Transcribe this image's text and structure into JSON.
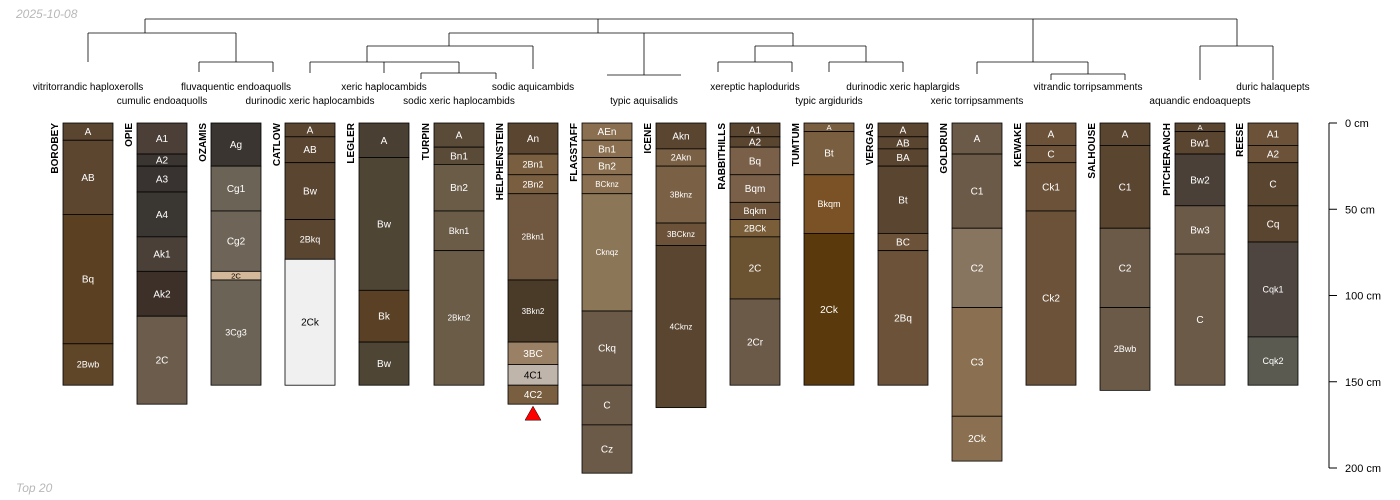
{
  "header": {
    "date": "2025-10-08"
  },
  "footer": {
    "caption": "Top 20"
  },
  "colors": {
    "line": "#000000",
    "marker": "#ff0000",
    "corner_text": "#b8b8b8"
  },
  "depth_axis": {
    "unit": "cm",
    "max_depth": 200,
    "ticks": [
      {
        "value": 0,
        "label": "0 cm"
      },
      {
        "value": 50,
        "label": "50 cm"
      },
      {
        "value": 100,
        "label": "100 cm"
      },
      {
        "value": 150,
        "label": "150 cm"
      },
      {
        "value": 200,
        "label": "200 cm"
      }
    ]
  },
  "taxa": [
    {
      "key": "vitritorrandic-haploxerolls",
      "label": "vitritorrandic haploxerolls"
    },
    {
      "key": "cumulic-endoaquolls",
      "label": "cumulic endoaquolls"
    },
    {
      "key": "fluvaquentic-endoaquolls",
      "label": "fluvaquentic endoaquolls"
    },
    {
      "key": "durinodic-xeric-haplocambids",
      "label": "durinodic xeric haplocambids"
    },
    {
      "key": "xeric-haplocambids",
      "label": "xeric haplocambids"
    },
    {
      "key": "sodic-xeric-haplocambids",
      "label": "sodic xeric haplocambids"
    },
    {
      "key": "sodic-aquicambids",
      "label": "sodic aquicambids"
    },
    {
      "key": "typic-aquisalids",
      "label": "typic aquisalids"
    },
    {
      "key": "xereptic-haplodurids",
      "label": "xereptic haplodurids"
    },
    {
      "key": "typic-argidurids",
      "label": "typic argidurids"
    },
    {
      "key": "durinodic-xeric-haplargids",
      "label": "durinodic xeric haplargids"
    },
    {
      "key": "xeric-torripsamments",
      "label": "xeric torripsamments"
    },
    {
      "key": "vitrandic-torripsamments",
      "label": "vitrandic torripsamments"
    },
    {
      "key": "aquandic-endoaquepts",
      "label": "aquandic endoaquepts"
    },
    {
      "key": "duric-halaquepts",
      "label": "duric halaquepts"
    }
  ],
  "profiles": [
    {
      "name": "BOROBEY",
      "horizons": [
        {
          "name": "A",
          "top": 0,
          "bottom": 10,
          "color": "#5a4530"
        },
        {
          "name": "AB",
          "top": 10,
          "bottom": 53,
          "color": "#5c4630"
        },
        {
          "name": "Bq",
          "top": 53,
          "bottom": 128,
          "color": "#5b4022"
        },
        {
          "name": "2Bwb",
          "top": 128,
          "bottom": 152,
          "color": "#5f4629"
        }
      ]
    },
    {
      "name": "OPIE",
      "horizons": [
        {
          "name": "A1",
          "top": 0,
          "bottom": 18,
          "color": "#4b3f38"
        },
        {
          "name": "A2",
          "top": 18,
          "bottom": 25,
          "color": "#3a3530"
        },
        {
          "name": "A3",
          "top": 25,
          "bottom": 40,
          "color": "#383330"
        },
        {
          "name": "A4",
          "top": 40,
          "bottom": 66,
          "color": "#3a3733"
        },
        {
          "name": "Ak1",
          "top": 66,
          "bottom": 86,
          "color": "#4a4038"
        },
        {
          "name": "Ak2",
          "top": 86,
          "bottom": 112,
          "color": "#3c3028"
        },
        {
          "name": "2C",
          "top": 112,
          "bottom": 163,
          "color": "#6b5c4c"
        }
      ]
    },
    {
      "name": "OZAMIS",
      "horizons": [
        {
          "name": "Ag",
          "top": 0,
          "bottom": 25,
          "color": "#3a3530"
        },
        {
          "name": "Cg1",
          "top": 25,
          "bottom": 51,
          "color": "#6b6356"
        },
        {
          "name": "Cg2",
          "top": 51,
          "bottom": 86,
          "color": "#6e6558"
        },
        {
          "name": "2C",
          "top": 86,
          "bottom": 91,
          "color": "#d4b89a"
        },
        {
          "name": "3Cg3",
          "top": 91,
          "bottom": 152,
          "color": "#6b6356"
        }
      ]
    },
    {
      "name": "CATLOW",
      "horizons": [
        {
          "name": "A",
          "top": 0,
          "bottom": 8,
          "color": "#5a4530"
        },
        {
          "name": "AB",
          "top": 8,
          "bottom": 23,
          "color": "#5a4530"
        },
        {
          "name": "Bw",
          "top": 23,
          "bottom": 56,
          "color": "#5a4530"
        },
        {
          "name": "2Bkq",
          "top": 56,
          "bottom": 79,
          "color": "#5a4530"
        },
        {
          "name": "2Ck",
          "top": 79,
          "bottom": 152,
          "color": "#f0f0f0"
        }
      ]
    },
    {
      "name": "LEGLER",
      "horizons": [
        {
          "name": "A",
          "top": 0,
          "bottom": 20,
          "color": "#4a3f33"
        },
        {
          "name": "Bw",
          "top": 20,
          "bottom": 97,
          "color": "#4e4535"
        },
        {
          "name": "Bk",
          "top": 97,
          "bottom": 127,
          "color": "#5a4025"
        },
        {
          "name": "Bw",
          "top": 127,
          "bottom": 152,
          "color": "#4e4535"
        }
      ]
    },
    {
      "name": "TURPIN",
      "horizons": [
        {
          "name": "A",
          "top": 0,
          "bottom": 14,
          "color": "#5a4a38"
        },
        {
          "name": "Bn1",
          "top": 14,
          "bottom": 24,
          "color": "#5a4a38"
        },
        {
          "name": "Bn2",
          "top": 24,
          "bottom": 51,
          "color": "#6b5c48"
        },
        {
          "name": "Bkn1",
          "top": 51,
          "bottom": 74,
          "color": "#6b5c48"
        },
        {
          "name": "2Bkn2",
          "top": 74,
          "bottom": 152,
          "color": "#6b5c48"
        }
      ]
    },
    {
      "name": "HELPHENSTEIN",
      "marker": true,
      "horizons": [
        {
          "name": "An",
          "top": 0,
          "bottom": 18,
          "color": "#5a4530"
        },
        {
          "name": "2Bn1",
          "top": 18,
          "bottom": 30,
          "color": "#7a5e40"
        },
        {
          "name": "2Bn2",
          "top": 30,
          "bottom": 41,
          "color": "#7a5e40"
        },
        {
          "name": "2Bkn1",
          "top": 41,
          "bottom": 91,
          "color": "#705840"
        },
        {
          "name": "3Bkn2",
          "top": 91,
          "bottom": 127,
          "color": "#4a3a28"
        },
        {
          "name": "3BC",
          "top": 127,
          "bottom": 140,
          "color": "#9a8065"
        },
        {
          "name": "4C1",
          "top": 140,
          "bottom": 152,
          "color": "#c0b5aa"
        },
        {
          "name": "4C2",
          "top": 152,
          "bottom": 163,
          "color": "#7a5e40"
        }
      ]
    },
    {
      "name": "FLAGSTAFF",
      "horizons": [
        {
          "name": "AEn",
          "top": 0,
          "bottom": 10,
          "color": "#8a7050"
        },
        {
          "name": "Bn1",
          "top": 10,
          "bottom": 20,
          "color": "#8a7050"
        },
        {
          "name": "Bn2",
          "top": 20,
          "bottom": 30,
          "color": "#8a7050"
        },
        {
          "name": "BCknz",
          "top": 30,
          "bottom": 41,
          "color": "#8a7050"
        },
        {
          "name": "Cknqz",
          "top": 41,
          "bottom": 109,
          "color": "#8c7658"
        },
        {
          "name": "Ckq",
          "top": 109,
          "bottom": 152,
          "color": "#6b5a48"
        },
        {
          "name": "C",
          "top": 152,
          "bottom": 175,
          "color": "#6b5a48"
        },
        {
          "name": "Cz",
          "top": 175,
          "bottom": 203,
          "color": "#6b5a48"
        }
      ]
    },
    {
      "name": "ICENE",
      "horizons": [
        {
          "name": "Akn",
          "top": 0,
          "bottom": 15,
          "color": "#5a4530"
        },
        {
          "name": "2Akn",
          "top": 15,
          "bottom": 25,
          "color": "#7a6045"
        },
        {
          "name": "3Bknz",
          "top": 25,
          "bottom": 58,
          "color": "#7a6045"
        },
        {
          "name": "3BCknz",
          "top": 58,
          "bottom": 71,
          "color": "#6b5238"
        },
        {
          "name": "4Cknz",
          "top": 71,
          "bottom": 165,
          "color": "#5a4530"
        }
      ]
    },
    {
      "name": "RABBITHILLS",
      "horizons": [
        {
          "name": "A1",
          "top": 0,
          "bottom": 8,
          "color": "#5a4530"
        },
        {
          "name": "A2",
          "top": 8,
          "bottom": 14,
          "color": "#5a4530"
        },
        {
          "name": "Bq",
          "top": 14,
          "bottom": 30,
          "color": "#7a6048"
        },
        {
          "name": "Bqm",
          "top": 30,
          "bottom": 46,
          "color": "#7a6048"
        },
        {
          "name": "Bqkm",
          "top": 46,
          "bottom": 56,
          "color": "#6b5238"
        },
        {
          "name": "2BCk",
          "top": 56,
          "bottom": 66,
          "color": "#7a5e3a"
        },
        {
          "name": "2C",
          "top": 66,
          "bottom": 102,
          "color": "#6b5230"
        },
        {
          "name": "2Cr",
          "top": 102,
          "bottom": 152,
          "color": "#6b5a48"
        }
      ]
    },
    {
      "name": "TUMTUM",
      "horizons": [
        {
          "name": "A",
          "top": 0,
          "bottom": 5,
          "color": "#7a5e40"
        },
        {
          "name": "Bt",
          "top": 5,
          "bottom": 30,
          "color": "#7a5e40"
        },
        {
          "name": "Bkqm",
          "top": 30,
          "bottom": 64,
          "color": "#7a5225"
        },
        {
          "name": "2Ck",
          "top": 64,
          "bottom": 152,
          "color": "#5a3a0c"
        }
      ]
    },
    {
      "name": "VERGAS",
      "horizons": [
        {
          "name": "A",
          "top": 0,
          "bottom": 8,
          "color": "#5a4530"
        },
        {
          "name": "AB",
          "top": 8,
          "bottom": 15,
          "color": "#5a4530"
        },
        {
          "name": "BA",
          "top": 15,
          "bottom": 25,
          "color": "#5a4530"
        },
        {
          "name": "Bt",
          "top": 25,
          "bottom": 64,
          "color": "#5a4530"
        },
        {
          "name": "BC",
          "top": 64,
          "bottom": 74,
          "color": "#6b5238"
        },
        {
          "name": "2Bq",
          "top": 74,
          "bottom": 152,
          "color": "#6b5238"
        }
      ]
    },
    {
      "name": "GOLDRUN",
      "horizons": [
        {
          "name": "A",
          "top": 0,
          "bottom": 18,
          "color": "#6b5a48"
        },
        {
          "name": "C1",
          "top": 18,
          "bottom": 61,
          "color": "#6b5a48"
        },
        {
          "name": "C2",
          "top": 61,
          "bottom": 107,
          "color": "#887560"
        },
        {
          "name": "C3",
          "top": 107,
          "bottom": 170,
          "color": "#8a7050"
        },
        {
          "name": "2Ck",
          "top": 170,
          "bottom": 196,
          "color": "#8a7050"
        }
      ]
    },
    {
      "name": "KEWAKE",
      "horizons": [
        {
          "name": "A",
          "top": 0,
          "bottom": 13,
          "color": "#6b5238"
        },
        {
          "name": "C",
          "top": 13,
          "bottom": 23,
          "color": "#6b5238"
        },
        {
          "name": "Ck1",
          "top": 23,
          "bottom": 51,
          "color": "#6b5238"
        },
        {
          "name": "Ck2",
          "top": 51,
          "bottom": 152,
          "color": "#6b5238"
        }
      ]
    },
    {
      "name": "SALHOUSE",
      "horizons": [
        {
          "name": "A",
          "top": 0,
          "bottom": 13,
          "color": "#5a4530"
        },
        {
          "name": "C1",
          "top": 13,
          "bottom": 61,
          "color": "#5a4530"
        },
        {
          "name": "C2",
          "top": 61,
          "bottom": 107,
          "color": "#6b5a48"
        },
        {
          "name": "2Bwb",
          "top": 107,
          "bottom": 155,
          "color": "#6b5a48"
        }
      ]
    },
    {
      "name": "PITCHERANCH",
      "horizons": [
        {
          "name": "A",
          "top": 0,
          "bottom": 5,
          "color": "#5a4530"
        },
        {
          "name": "Bw1",
          "top": 5,
          "bottom": 18,
          "color": "#5a4530"
        },
        {
          "name": "Bw2",
          "top": 18,
          "bottom": 48,
          "color": "#4a4038"
        },
        {
          "name": "Bw3",
          "top": 48,
          "bottom": 76,
          "color": "#6b5a48"
        },
        {
          "name": "C",
          "top": 76,
          "bottom": 152,
          "color": "#6b5a48"
        }
      ]
    },
    {
      "name": "REESE",
      "horizons": [
        {
          "name": "A1",
          "top": 0,
          "bottom": 13,
          "color": "#6b5238"
        },
        {
          "name": "A2",
          "top": 13,
          "bottom": 23,
          "color": "#6b5238"
        },
        {
          "name": "C",
          "top": 23,
          "bottom": 48,
          "color": "#5a4530"
        },
        {
          "name": "Cq",
          "top": 48,
          "bottom": 69,
          "color": "#5a4530"
        },
        {
          "name": "Cqk1",
          "top": 69,
          "bottom": 124,
          "color": "#4e4540"
        },
        {
          "name": "Cqk2",
          "top": 124,
          "bottom": 152,
          "color": "#5a5a50"
        }
      ]
    }
  ]
}
